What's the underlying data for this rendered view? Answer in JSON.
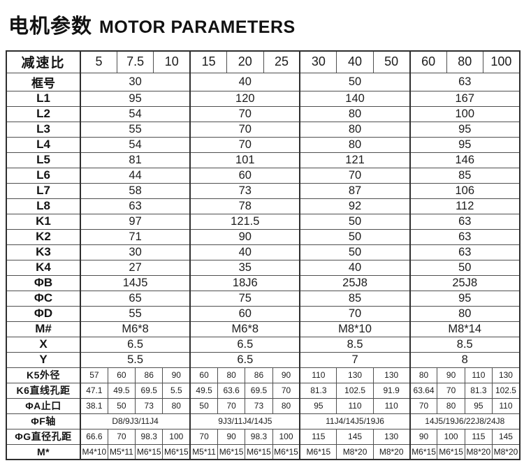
{
  "title": {
    "zh": "电机参数",
    "en": "MOTOR PARAMETERS"
  },
  "colors": {
    "text": "#1c1c1c",
    "border": "#4f4f4f",
    "border_strong": "#2e2e2e",
    "background": "#ffffff"
  },
  "table": {
    "header": {
      "label": "减速比",
      "ratios": [
        "5",
        "7.5",
        "10",
        "15",
        "20",
        "25",
        "30",
        "40",
        "50",
        "60",
        "80",
        "100"
      ]
    },
    "rows_span3": [
      {
        "label": "框号",
        "values": [
          "30",
          "40",
          "50",
          "63"
        ]
      },
      {
        "label": "L1",
        "values": [
          "95",
          "120",
          "140",
          "167"
        ]
      },
      {
        "label": "L2",
        "values": [
          "54",
          "70",
          "80",
          "100"
        ]
      },
      {
        "label": "L3",
        "values": [
          "55",
          "70",
          "80",
          "95"
        ]
      },
      {
        "label": "L4",
        "values": [
          "54",
          "70",
          "80",
          "95"
        ]
      },
      {
        "label": "L5",
        "values": [
          "81",
          "101",
          "121",
          "146"
        ]
      },
      {
        "label": "L6",
        "values": [
          "44",
          "60",
          "70",
          "85"
        ]
      },
      {
        "label": "L7",
        "values": [
          "58",
          "73",
          "87",
          "106"
        ]
      },
      {
        "label": "L8",
        "values": [
          "63",
          "78",
          "92",
          "112"
        ]
      },
      {
        "label": "K1",
        "values": [
          "97",
          "121.5",
          "50",
          "63"
        ]
      },
      {
        "label": "K2",
        "values": [
          "71",
          "90",
          "50",
          "63"
        ]
      },
      {
        "label": "K3",
        "values": [
          "30",
          "40",
          "50",
          "63"
        ]
      },
      {
        "label": "K4",
        "values": [
          "27",
          "35",
          "40",
          "50"
        ]
      },
      {
        "label": "ΦB",
        "values": [
          "14J5",
          "18J6",
          "25J8",
          "25J8"
        ]
      },
      {
        "label": "ΦC",
        "values": [
          "65",
          "75",
          "85",
          "95"
        ]
      },
      {
        "label": "ΦD",
        "values": [
          "55",
          "60",
          "70",
          "80"
        ]
      },
      {
        "label": "M#",
        "values": [
          "M6*8",
          "M6*8",
          "M8*10",
          "M8*14"
        ]
      },
      {
        "label": "X",
        "values": [
          "6.5",
          "6.5",
          "8.5",
          "8.5"
        ]
      },
      {
        "label": "Y",
        "values": [
          "5.5",
          "6.5",
          "7",
          "8"
        ]
      }
    ],
    "rows_bottom": [
      {
        "label": "K5外径",
        "groups": [
          [
            "57",
            "60",
            "86",
            "90"
          ],
          [
            "60",
            "80",
            "86",
            "90"
          ],
          [
            "110",
            "130",
            "130"
          ],
          [
            "80",
            "90",
            "110",
            "130"
          ]
        ]
      },
      {
        "label": "K6直线孔距",
        "groups": [
          [
            "47.1",
            "49.5",
            "69.5",
            "5.5"
          ],
          [
            "49.5",
            "63.6",
            "69.5",
            "70"
          ],
          [
            "81.3",
            "102.5",
            "91.9"
          ],
          [
            "63.64",
            "70",
            "81.3",
            "102.5"
          ]
        ]
      },
      {
        "label": "ΦA止口",
        "groups": [
          [
            "38.1",
            "50",
            "73",
            "80"
          ],
          [
            "50",
            "70",
            "73",
            "80"
          ],
          [
            "95",
            "110",
            "110"
          ],
          [
            "70",
            "80",
            "95",
            "110"
          ]
        ]
      },
      {
        "label": "ΦF轴",
        "values": [
          "D8/9J3/11J4",
          "9J3/11J4/14J5",
          "11J4/14J5/19J6",
          "14J5/19J6/22J8/24J8"
        ]
      },
      {
        "label": "ΦG直径孔距",
        "groups": [
          [
            "66.6",
            "70",
            "98.3",
            "100"
          ],
          [
            "70",
            "90",
            "98.3",
            "100"
          ],
          [
            "115",
            "145",
            "130"
          ],
          [
            "90",
            "100",
            "115",
            "145"
          ]
        ]
      },
      {
        "label": "M*",
        "groups": [
          [
            "M4*10",
            "M5*11",
            "M6*15",
            "M6*15"
          ],
          [
            "M5*11",
            "M6*15",
            "M6*15",
            "M6*15"
          ],
          [
            "M6*15",
            "M8*20",
            "M8*20"
          ],
          [
            "M6*15",
            "M6*15",
            "M8*20",
            "M8*20"
          ]
        ]
      }
    ]
  }
}
